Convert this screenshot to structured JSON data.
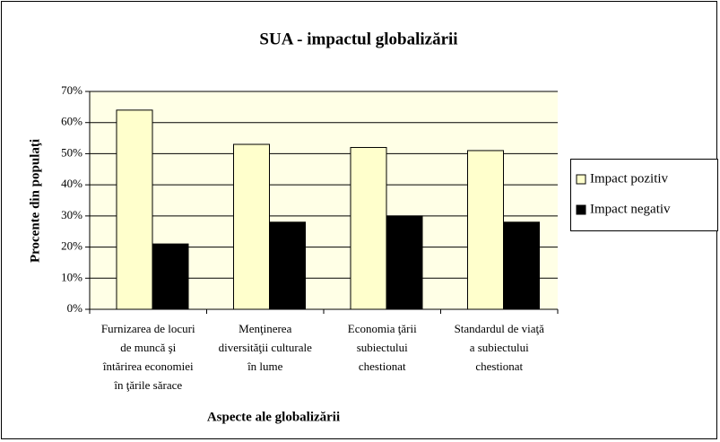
{
  "chart_data": {
    "type": "bar",
    "title": "SUA - impactul globalizării",
    "x_label": "Aspecte ale globalizării",
    "y_label": "Procente din populaţi",
    "categories": [
      [
        "Furnizarea de locuri",
        "de muncă şi",
        "întărirea economiei",
        "în ţările sărace"
      ],
      [
        "Menţinerea",
        "diversităţii culturale",
        "în lume"
      ],
      [
        "Economia ţării",
        "subiectului",
        "chestionat"
      ],
      [
        "Standardul de viaţă",
        "a subiectului",
        "chestionat"
      ]
    ],
    "series": [
      {
        "name": "Impact pozitiv",
        "color": "#FFFFCC",
        "values": [
          64,
          53,
          52,
          51
        ]
      },
      {
        "name": "Impact negativ",
        "color": "#000000",
        "values": [
          21,
          28,
          30,
          28
        ]
      }
    ],
    "ylim": [
      0,
      70
    ],
    "yticks": [
      {
        "value": 0,
        "label": "0%"
      },
      {
        "value": 10,
        "label": "10%"
      },
      {
        "value": 20,
        "label": "20%"
      },
      {
        "value": 30,
        "label": "30%"
      },
      {
        "value": 40,
        "label": "40%"
      },
      {
        "value": 50,
        "label": "50%"
      },
      {
        "value": 60,
        "label": "60%"
      },
      {
        "value": 70,
        "label": "70%"
      }
    ],
    "grid": true,
    "legend": "right"
  }
}
